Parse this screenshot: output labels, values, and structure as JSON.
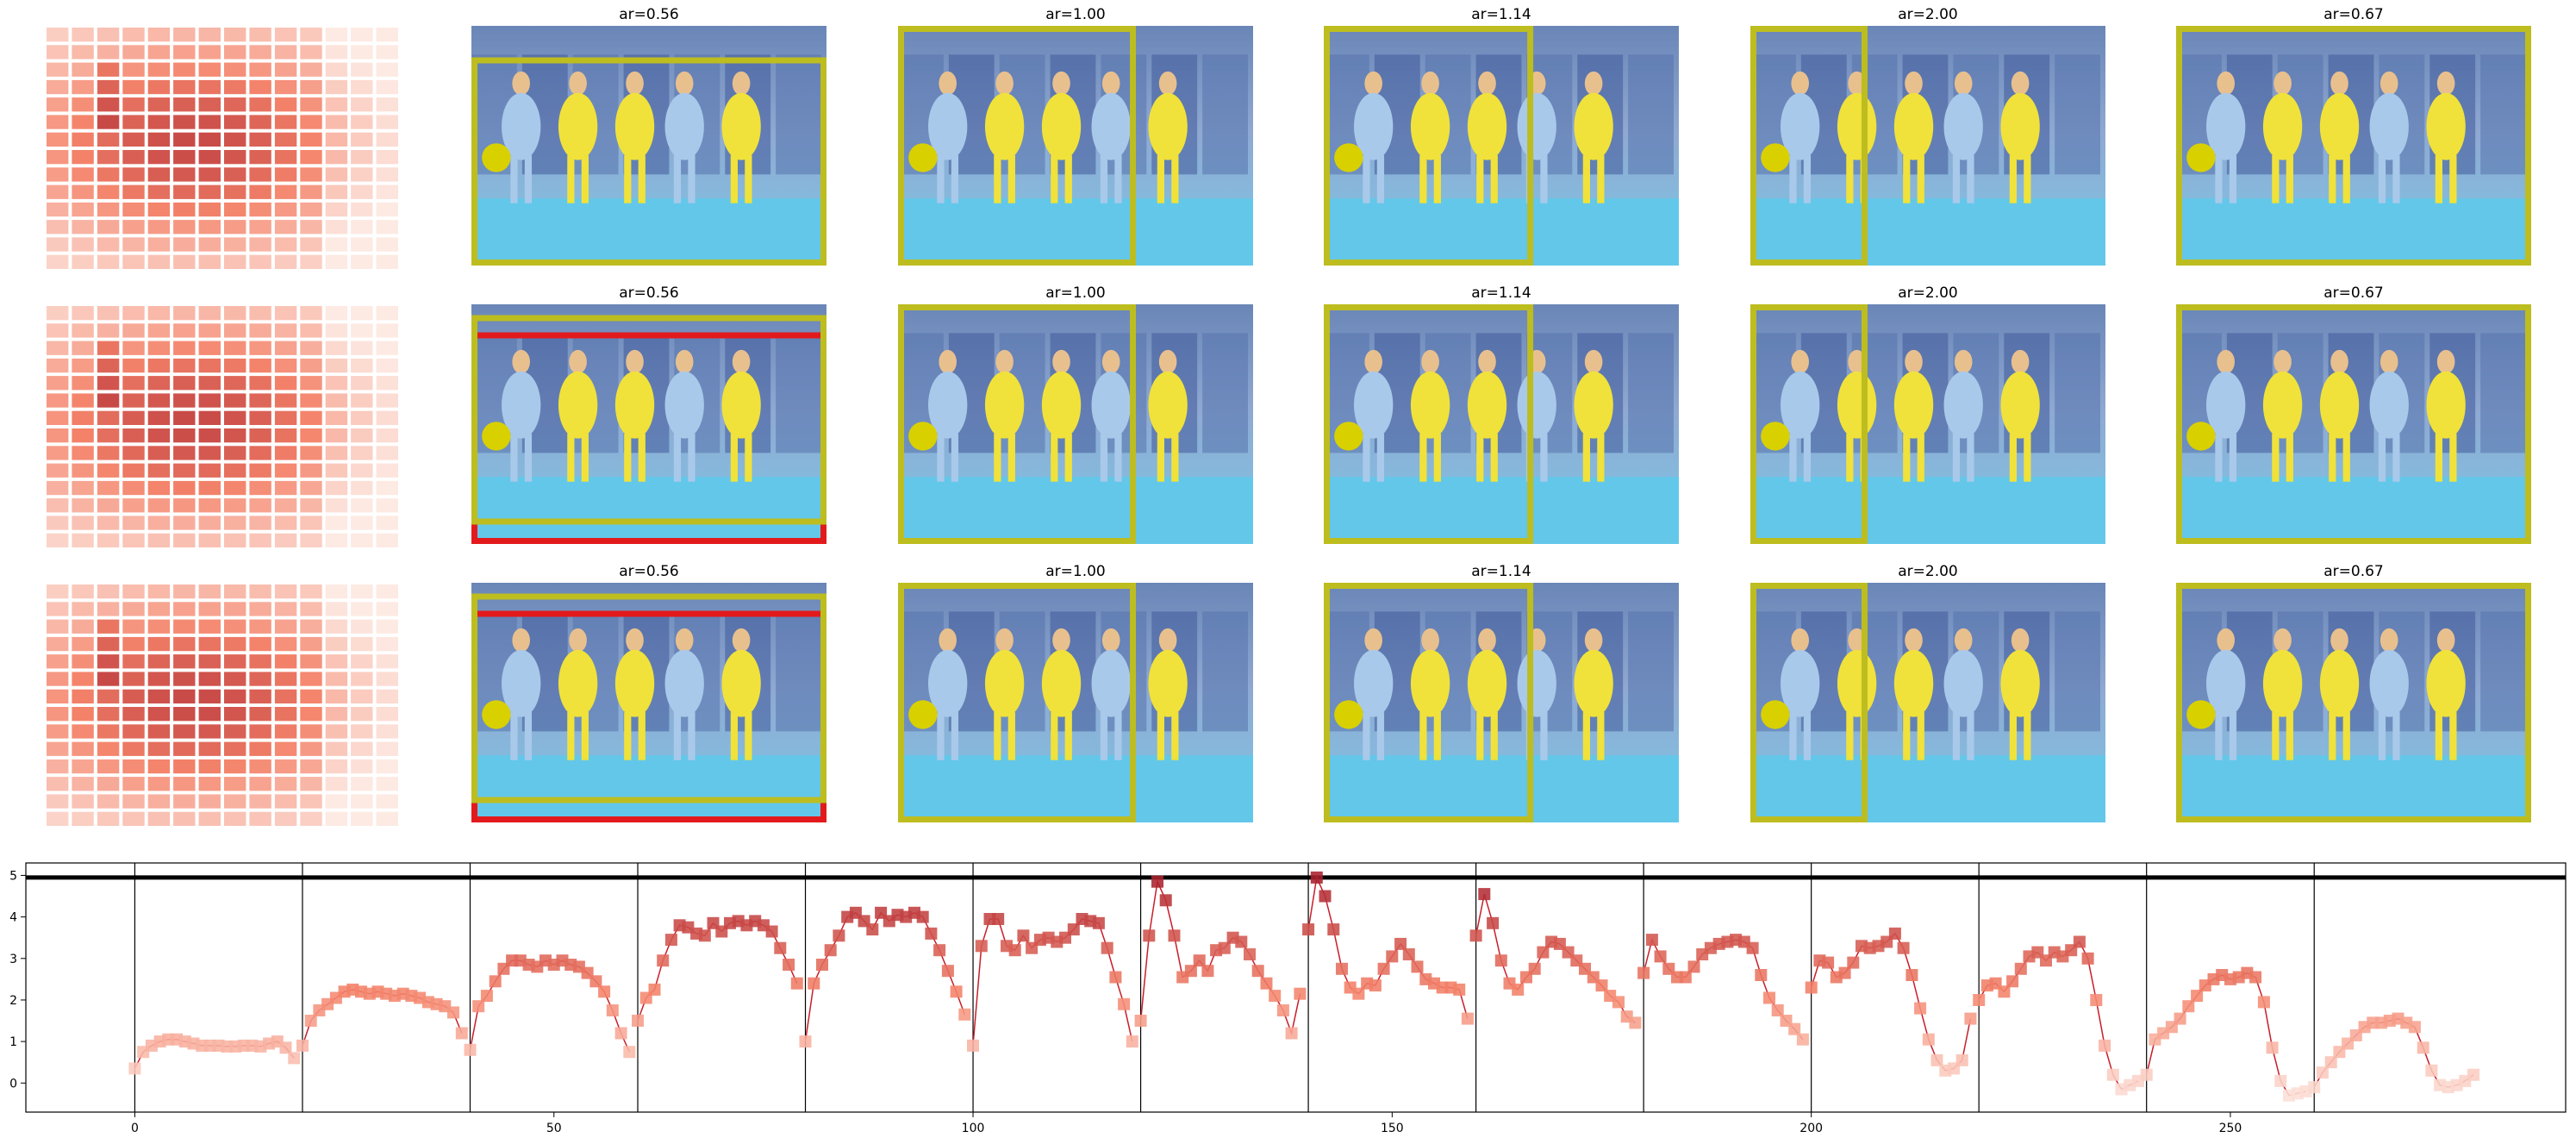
{
  "panel_titles": [
    "ar=0.56",
    "ar=1.00",
    "ar=1.14",
    "ar=2.00",
    "ar=0.67"
  ],
  "colors": {
    "heatmap_light": "#fdeae3",
    "heatmap_mid": "#f4836a",
    "heatmap_dark": "#a71e2c",
    "crop_box": "#bdbd1f",
    "reference_box": "#e31a1c",
    "line_color": "#c81e2a",
    "axis": "#000000"
  },
  "images": {
    "description_icon": "hockey-photo-icon"
  },
  "chart_data": [
    {
      "type": "heatmap",
      "grid_rows": 14,
      "grid_cols": 14,
      "rows_shown": 3,
      "colormap": "Reds"
    },
    {
      "type": "line",
      "xlim": [
        -13,
        290
      ],
      "ylim": [
        -0.7,
        5.3
      ],
      "xticks": [
        0,
        50,
        100,
        150,
        200,
        250
      ],
      "yticks": [
        0,
        1,
        2,
        3,
        4,
        5
      ],
      "vertical_lines": [
        0,
        20,
        40,
        60,
        80,
        100,
        120,
        140,
        160,
        180,
        200,
        220,
        240,
        260
      ],
      "hline": 4.95,
      "marker": "square",
      "segments": [
        [
          0.35,
          0.75,
          0.9,
          1.0,
          1.05,
          1.05,
          1.0,
          0.95,
          0.9,
          0.9,
          0.9,
          0.88,
          0.88,
          0.9,
          0.9,
          0.88,
          0.95,
          1.0,
          0.85,
          0.6
        ],
        [
          0.9,
          1.5,
          1.75,
          1.9,
          2.05,
          2.2,
          2.25,
          2.2,
          2.15,
          2.2,
          2.15,
          2.1,
          2.15,
          2.1,
          2.05,
          1.95,
          1.9,
          1.85,
          1.7,
          1.2
        ],
        [
          0.8,
          1.85,
          2.1,
          2.45,
          2.75,
          2.95,
          2.95,
          2.85,
          2.8,
          2.95,
          2.85,
          2.95,
          2.85,
          2.8,
          2.65,
          2.45,
          2.2,
          1.75,
          1.2,
          0.75
        ],
        [
          1.5,
          2.05,
          2.25,
          2.95,
          3.45,
          3.8,
          3.75,
          3.6,
          3.55,
          3.85,
          3.65,
          3.85,
          3.9,
          3.8,
          3.9,
          3.8,
          3.65,
          3.25,
          2.85,
          2.4
        ],
        [
          1.0,
          2.4,
          2.85,
          3.2,
          3.55,
          4.0,
          4.1,
          3.9,
          3.7,
          4.1,
          3.9,
          4.05,
          4.0,
          4.1,
          4.0,
          3.6,
          3.2,
          2.7,
          2.2,
          1.65
        ],
        [
          0.9,
          3.3,
          3.95,
          3.95,
          3.3,
          3.2,
          3.55,
          3.25,
          3.45,
          3.5,
          3.4,
          3.5,
          3.7,
          3.95,
          3.9,
          3.85,
          3.25,
          2.55,
          1.9,
          1.0
        ],
        [
          1.5,
          3.55,
          4.85,
          4.4,
          3.55,
          2.55,
          2.7,
          2.95,
          2.7,
          3.2,
          3.25,
          3.5,
          3.4,
          3.1,
          2.7,
          2.4,
          2.1,
          1.75,
          1.2,
          2.15
        ],
        [
          3.7,
          4.95,
          4.5,
          3.7,
          2.75,
          2.3,
          2.15,
          2.4,
          2.35,
          2.75,
          3.05,
          3.35,
          3.1,
          2.8,
          2.5,
          2.4,
          2.3,
          2.3,
          2.25,
          1.55
        ],
        [
          3.55,
          4.55,
          3.85,
          2.95,
          2.4,
          2.25,
          2.55,
          2.75,
          3.15,
          3.4,
          3.35,
          3.15,
          2.95,
          2.75,
          2.55,
          2.35,
          2.1,
          1.95,
          1.6,
          1.45
        ],
        [
          2.65,
          3.45,
          3.05,
          2.75,
          2.55,
          2.55,
          2.8,
          3.1,
          3.25,
          3.35,
          3.4,
          3.45,
          3.4,
          3.25,
          2.6,
          2.05,
          1.75,
          1.5,
          1.3,
          1.05
        ],
        [
          2.3,
          2.95,
          2.9,
          2.55,
          2.65,
          2.9,
          3.3,
          3.25,
          3.3,
          3.4,
          3.6,
          3.25,
          2.6,
          1.8,
          1.05,
          0.55,
          0.3,
          0.35,
          0.55,
          1.55
        ],
        [
          2.0,
          2.35,
          2.4,
          2.2,
          2.45,
          2.75,
          3.05,
          3.15,
          2.95,
          3.15,
          3.05,
          3.2,
          3.4,
          3.0,
          2.0,
          0.9,
          0.2,
          -0.15,
          -0.05,
          0.05
        ],
        [
          0.2,
          1.05,
          1.2,
          1.35,
          1.55,
          1.85,
          2.1,
          2.35,
          2.5,
          2.6,
          2.5,
          2.55,
          2.65,
          2.55,
          1.95,
          0.85,
          0.05,
          -0.3,
          -0.25,
          -0.2
        ],
        [
          -0.1,
          0.25,
          0.5,
          0.75,
          0.95,
          1.15,
          1.35,
          1.45,
          1.45,
          1.5,
          1.55,
          1.45,
          1.35,
          0.85,
          0.3,
          -0.05,
          -0.1,
          -0.05,
          0.05,
          0.2
        ]
      ]
    }
  ]
}
